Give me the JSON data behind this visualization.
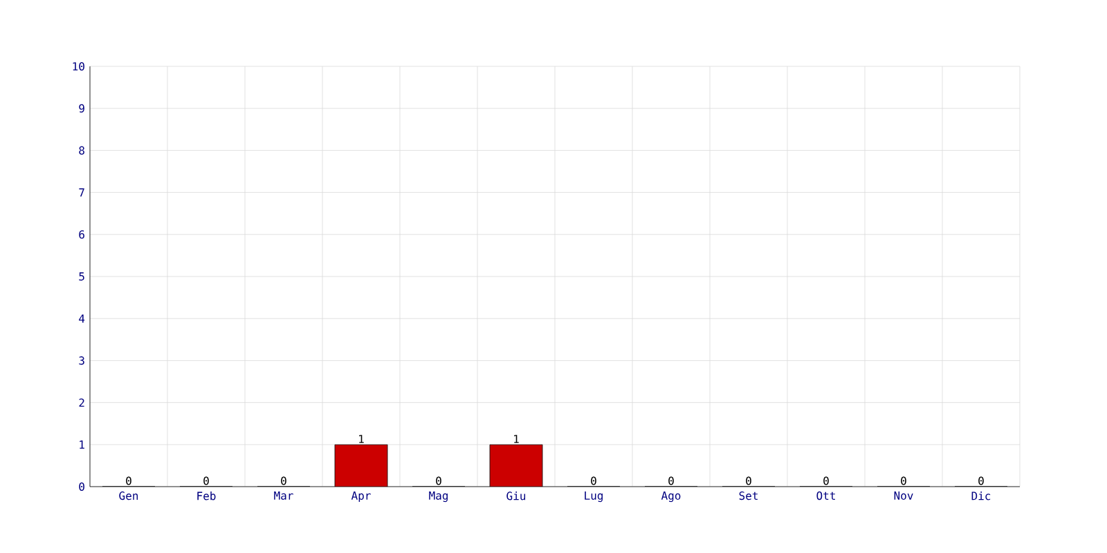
{
  "chart_data": {
    "type": "bar",
    "categories": [
      "Gen",
      "Feb",
      "Mar",
      "Apr",
      "Mag",
      "Giu",
      "Lug",
      "Ago",
      "Set",
      "Ott",
      "Nov",
      "Dic"
    ],
    "values": [
      0,
      0,
      0,
      1,
      0,
      1,
      0,
      0,
      0,
      0,
      0,
      0
    ],
    "color": "#cc0000",
    "ylim": [
      0,
      10
    ],
    "yticks": [
      0,
      1,
      2,
      3,
      4,
      5,
      6,
      7,
      8,
      9,
      10
    ],
    "grid": true,
    "data_labels": true
  }
}
